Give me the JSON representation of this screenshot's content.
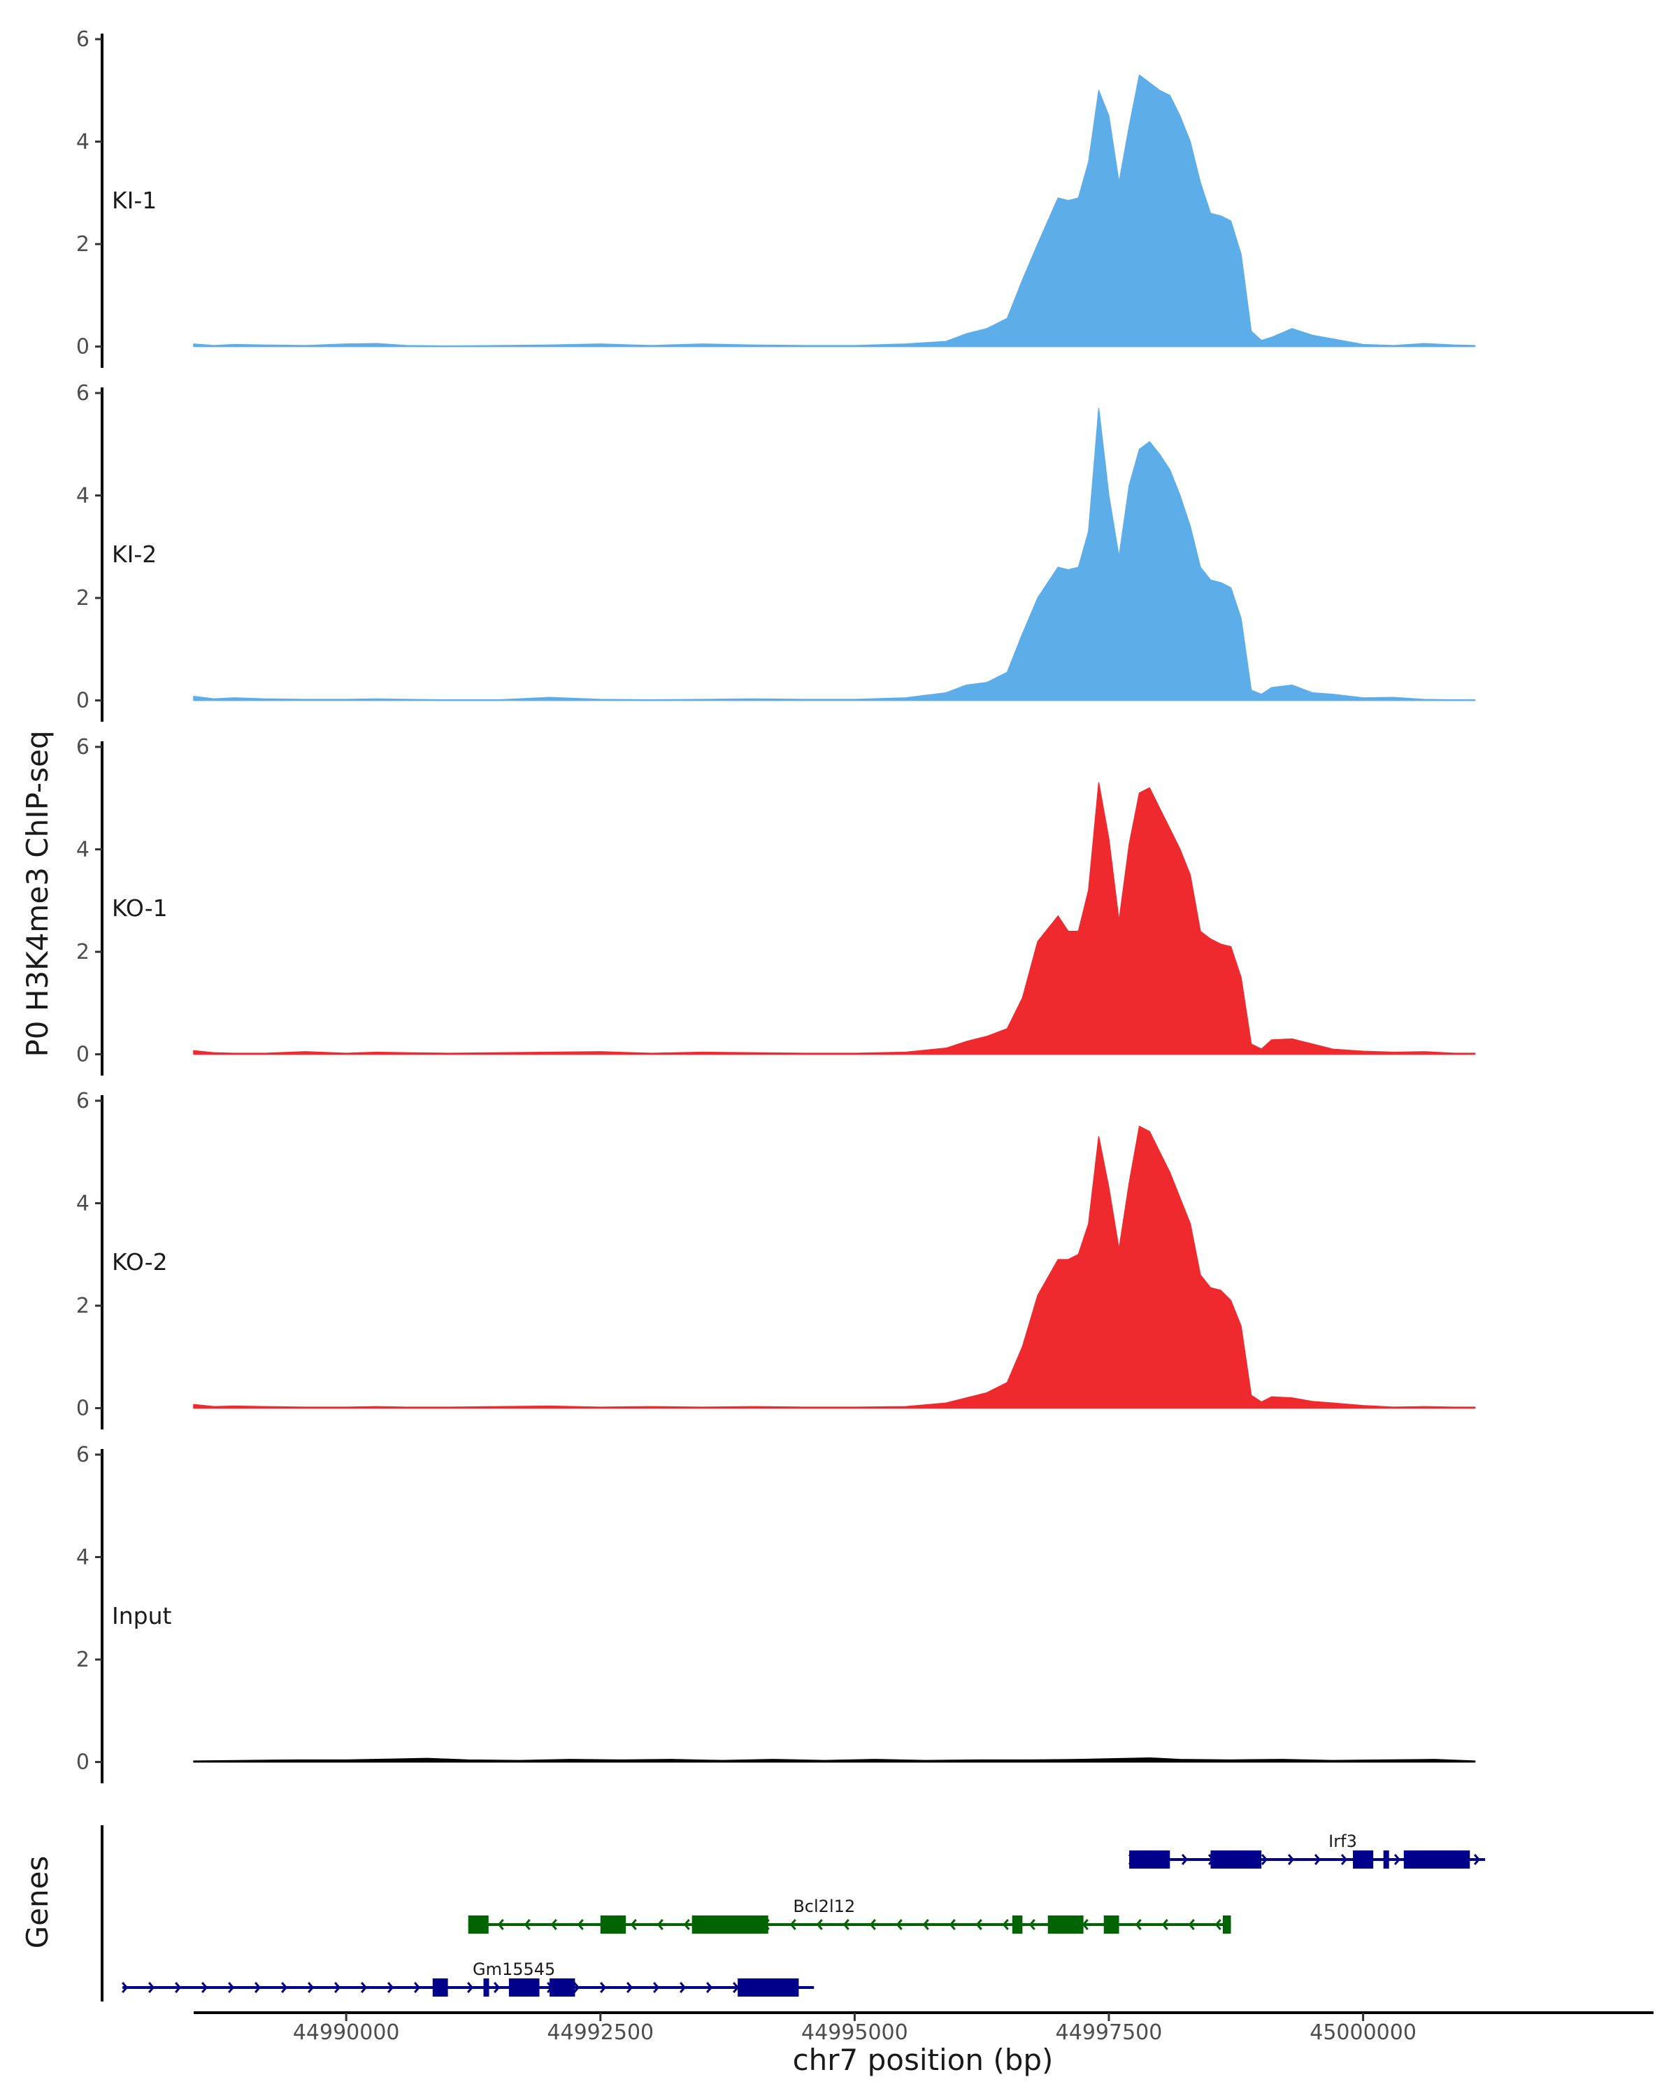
{
  "chart_data": {
    "type": "area",
    "title": "",
    "xlabel": "chr7 position (bp)",
    "ylabel": "P0 H3K4me3 ChIP-seq",
    "genes_axis_label": "Genes",
    "xlim": [
      44987100,
      45002300
    ],
    "ylim": [
      0,
      6
    ],
    "y_ticks": [
      0,
      2,
      4,
      6
    ],
    "x_ticks": [
      44990000,
      44992500,
      44995000,
      44997500,
      45000000
    ],
    "x_tick_labels": [
      "44990000",
      "44992500",
      "44995000",
      "44997500",
      "45000000"
    ],
    "colors": {
      "KI": "#5dade9",
      "KO": "#ee2a2f",
      "Input": "#000000",
      "gene_plus": "#00008b",
      "gene_minus": "#006400",
      "axis": "#000000"
    },
    "series": [
      {
        "name": "KI-1",
        "color": "#5dade9",
        "x": [
          44988500,
          44988700,
          44988900,
          44989200,
          44989600,
          44990000,
          44990300,
          44990600,
          44991000,
          44991500,
          44992000,
          44992500,
          44993000,
          44993500,
          44994000,
          44994500,
          44995000,
          44995500,
          44995900,
          44996100,
          44996300,
          44996500,
          44996650,
          44996800,
          44997000,
          44997100,
          44997200,
          44997300,
          44997400,
          44997500,
          44997600,
          44997700,
          44997800,
          44997900,
          44998000,
          44998100,
          44998200,
          44998300,
          44998400,
          44998500,
          44998600,
          44998700,
          44998800,
          44998900,
          44999000,
          44999100,
          44999300,
          44999500,
          44999700,
          45000000,
          45000300,
          45000600,
          45000900,
          45001100
        ],
        "values": [
          0.05,
          0.02,
          0.04,
          0.03,
          0.02,
          0.05,
          0.06,
          0.02,
          0.01,
          0.02,
          0.03,
          0.05,
          0.02,
          0.05,
          0.03,
          0.02,
          0.02,
          0.05,
          0.1,
          0.25,
          0.35,
          0.55,
          1.3,
          2.0,
          2.9,
          2.85,
          2.9,
          3.6,
          5.0,
          4.5,
          3.2,
          4.3,
          5.3,
          5.15,
          5.0,
          4.9,
          4.5,
          4.0,
          3.2,
          2.6,
          2.55,
          2.45,
          1.8,
          0.3,
          0.12,
          0.18,
          0.35,
          0.22,
          0.15,
          0.04,
          0.02,
          0.06,
          0.03,
          0.02
        ]
      },
      {
        "name": "KI-2",
        "color": "#5dade9",
        "x": [
          44988500,
          44988700,
          44988900,
          44989200,
          44989600,
          44990000,
          44990300,
          44990600,
          44991000,
          44991500,
          44992000,
          44992500,
          44993000,
          44993500,
          44994000,
          44994500,
          44995000,
          44995500,
          44995900,
          44996100,
          44996300,
          44996500,
          44996650,
          44996800,
          44997000,
          44997100,
          44997200,
          44997300,
          44997400,
          44997500,
          44997600,
          44997700,
          44997800,
          44997900,
          44998000,
          44998100,
          44998200,
          44998300,
          44998400,
          44998500,
          44998600,
          44998700,
          44998800,
          44998900,
          44999000,
          44999100,
          44999300,
          44999500,
          44999700,
          45000000,
          45000300,
          45000600,
          45000900,
          45001100
        ],
        "values": [
          0.08,
          0.03,
          0.05,
          0.03,
          0.02,
          0.02,
          0.03,
          0.02,
          0.01,
          0.01,
          0.06,
          0.02,
          0.01,
          0.02,
          0.03,
          0.02,
          0.02,
          0.05,
          0.15,
          0.3,
          0.35,
          0.55,
          1.3,
          2.0,
          2.6,
          2.55,
          2.6,
          3.3,
          5.7,
          4.0,
          2.8,
          4.2,
          4.9,
          5.05,
          4.8,
          4.5,
          4.0,
          3.4,
          2.6,
          2.35,
          2.3,
          2.2,
          1.6,
          0.2,
          0.12,
          0.25,
          0.3,
          0.15,
          0.12,
          0.05,
          0.06,
          0.02,
          0.01,
          0.01
        ]
      },
      {
        "name": "KO-1",
        "color": "#ee2a2f",
        "x": [
          44988500,
          44988700,
          44988900,
          44989200,
          44989600,
          44990000,
          44990300,
          44990600,
          44991000,
          44991500,
          44992000,
          44992500,
          44993000,
          44993500,
          44994000,
          44994500,
          44995000,
          44995500,
          44995900,
          44996100,
          44996300,
          44996500,
          44996650,
          44996800,
          44997000,
          44997100,
          44997200,
          44997300,
          44997400,
          44997500,
          44997600,
          44997700,
          44997800,
          44997900,
          44998000,
          44998100,
          44998200,
          44998300,
          44998400,
          44998500,
          44998600,
          44998700,
          44998800,
          44998900,
          44999000,
          44999100,
          44999300,
          44999500,
          44999700,
          45000000,
          45000300,
          45000600,
          45000900,
          45001100
        ],
        "values": [
          0.07,
          0.03,
          0.02,
          0.02,
          0.05,
          0.02,
          0.04,
          0.03,
          0.02,
          0.03,
          0.04,
          0.05,
          0.02,
          0.04,
          0.03,
          0.02,
          0.02,
          0.04,
          0.12,
          0.25,
          0.35,
          0.5,
          1.1,
          2.2,
          2.7,
          2.4,
          2.4,
          3.2,
          5.3,
          4.2,
          2.6,
          4.1,
          5.1,
          5.2,
          4.8,
          4.4,
          4.0,
          3.5,
          2.4,
          2.25,
          2.15,
          2.1,
          1.5,
          0.2,
          0.1,
          0.28,
          0.3,
          0.2,
          0.1,
          0.06,
          0.04,
          0.05,
          0.02,
          0.02
        ]
      },
      {
        "name": "KO-2",
        "color": "#ee2a2f",
        "x": [
          44988500,
          44988700,
          44988900,
          44989200,
          44989600,
          44990000,
          44990300,
          44990600,
          44991000,
          44991500,
          44992000,
          44992500,
          44993000,
          44993500,
          44994000,
          44994500,
          44995000,
          44995500,
          44995900,
          44996100,
          44996300,
          44996500,
          44996650,
          44996800,
          44997000,
          44997100,
          44997200,
          44997300,
          44997400,
          44997500,
          44997600,
          44997700,
          44997800,
          44997900,
          44998000,
          44998100,
          44998200,
          44998300,
          44998400,
          44998500,
          44998600,
          44998700,
          44998800,
          44998900,
          44999000,
          44999100,
          44999300,
          44999500,
          44999700,
          45000000,
          45000300,
          45000600,
          45000900,
          45001100
        ],
        "values": [
          0.07,
          0.03,
          0.04,
          0.03,
          0.02,
          0.02,
          0.03,
          0.02,
          0.02,
          0.03,
          0.04,
          0.02,
          0.03,
          0.02,
          0.03,
          0.02,
          0.02,
          0.03,
          0.1,
          0.2,
          0.3,
          0.5,
          1.2,
          2.2,
          2.9,
          2.9,
          3.0,
          3.6,
          5.3,
          4.3,
          3.1,
          4.4,
          5.5,
          5.4,
          5.0,
          4.6,
          4.1,
          3.6,
          2.6,
          2.35,
          2.3,
          2.1,
          1.6,
          0.25,
          0.12,
          0.22,
          0.2,
          0.13,
          0.1,
          0.05,
          0.02,
          0.03,
          0.02,
          0.02
        ]
      },
      {
        "name": "Input",
        "color": "#000000",
        "x": [
          44988500,
          44989000,
          44989500,
          44990000,
          44990500,
          44990800,
          44991200,
          44991700,
          44992200,
          44992700,
          44993200,
          44993700,
          44994200,
          44994700,
          44995200,
          44995700,
          44996200,
          44996700,
          44997200,
          44997700,
          44997900,
          44998200,
          44998700,
          44999200,
          44999700,
          45000200,
          45000700,
          45001100
        ],
        "values": [
          0.02,
          0.03,
          0.04,
          0.04,
          0.06,
          0.07,
          0.04,
          0.03,
          0.05,
          0.04,
          0.05,
          0.03,
          0.05,
          0.03,
          0.05,
          0.03,
          0.04,
          0.04,
          0.05,
          0.07,
          0.08,
          0.05,
          0.04,
          0.05,
          0.03,
          0.04,
          0.05,
          0.02
        ]
      }
    ],
    "genes": [
      {
        "name": "Irf3",
        "strand": "+",
        "color": "#00008b",
        "start": 44997700,
        "end": 45001200,
        "exons": [
          [
            44997700,
            44998100
          ],
          [
            44998500,
            44999000
          ],
          [
            44999900,
            45000100
          ],
          [
            45000200,
            45000250
          ],
          [
            45000400,
            45001050
          ]
        ],
        "label_pos": 44999800
      },
      {
        "name": "Bcl2l12",
        "strand": "-",
        "color": "#006400",
        "start": 44991200,
        "end": 44998700,
        "exons": [
          [
            44991200,
            44991400
          ],
          [
            44992500,
            44992750
          ],
          [
            44993400,
            44994150
          ],
          [
            44996550,
            44996650
          ],
          [
            44996900,
            44997250
          ],
          [
            44997450,
            44997600
          ],
          [
            44998620,
            44998700
          ]
        ],
        "label_pos": 44994700
      },
      {
        "name": "Gm15545",
        "strand": "+",
        "color": "#00008b",
        "start": 44987800,
        "end": 44994600,
        "exons": [
          [
            44990850,
            44991000
          ],
          [
            44991350,
            44991400
          ],
          [
            44991600,
            44991900
          ],
          [
            44992000,
            44992250
          ],
          [
            44993850,
            44994450
          ]
        ],
        "label_pos": 44991650
      }
    ]
  }
}
